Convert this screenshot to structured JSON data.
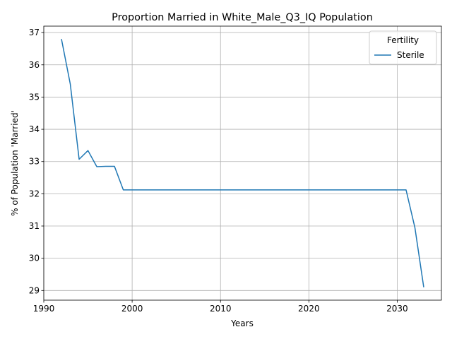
{
  "chart_data": {
    "type": "line",
    "title": "Proportion Married in White_Male_Q3_IQ Population",
    "xlabel": "Years",
    "ylabel": "% of Population 'Married'",
    "xlim": [
      1990,
      2035
    ],
    "ylim": [
      28.7,
      37.2
    ],
    "xticks": [
      1990,
      2000,
      2010,
      2020,
      2030
    ],
    "yticks": [
      29,
      30,
      31,
      32,
      33,
      34,
      35,
      36,
      37
    ],
    "grid": true,
    "legend": {
      "title": "Fertility",
      "position": "top-right"
    },
    "series": [
      {
        "name": "Sterile",
        "color": "#1f77b4",
        "points": [
          [
            1992,
            36.8
          ],
          [
            1993,
            35.4
          ],
          [
            1994,
            33.07
          ],
          [
            1995,
            33.34
          ],
          [
            1996,
            32.84
          ],
          [
            1997,
            32.85
          ],
          [
            1998,
            32.85
          ],
          [
            1999,
            32.12
          ],
          [
            2000,
            32.12
          ],
          [
            2005,
            32.12
          ],
          [
            2010,
            32.12
          ],
          [
            2015,
            32.12
          ],
          [
            2020,
            32.12
          ],
          [
            2025,
            32.12
          ],
          [
            2030,
            32.12
          ],
          [
            2031,
            32.12
          ],
          [
            2032,
            30.95
          ],
          [
            2033,
            29.1
          ]
        ]
      }
    ]
  }
}
